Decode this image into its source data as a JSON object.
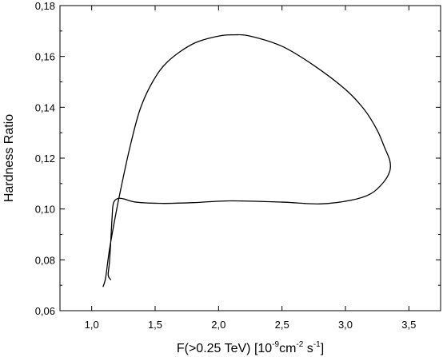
{
  "chart_data": {
    "type": "line",
    "title": "",
    "xlabel": {
      "prefix": "F(>0.25 TeV) [10",
      "exp1": "-9",
      "mid1": "cm",
      "exp2": "-2",
      "mid2": " s",
      "exp3": "-1",
      "suffix": "]"
    },
    "ylabel": "Hardness Ratio",
    "xlim": [
      0.75,
      3.75
    ],
    "ylim": [
      0.06,
      0.18
    ],
    "x_ticks": [
      "1,0",
      "1,5",
      "2,0",
      "2,5",
      "3,0",
      "3,5"
    ],
    "x_tick_values": [
      1.0,
      1.5,
      2.0,
      2.5,
      3.0,
      3.5
    ],
    "y_ticks": [
      "0,06",
      "0,08",
      "0,10",
      "0,12",
      "0,14",
      "0,16",
      "0,18"
    ],
    "y_tick_values": [
      0.06,
      0.08,
      0.1,
      0.12,
      0.14,
      0.16,
      0.18
    ],
    "grid": false,
    "series": [
      {
        "points": [
          [
            1.09,
            0.0695
          ],
          [
            1.11,
            0.073
          ],
          [
            1.14,
            0.084
          ],
          [
            1.19,
            0.098
          ],
          [
            1.23,
            0.108
          ],
          [
            1.3,
            0.124
          ],
          [
            1.38,
            0.139
          ],
          [
            1.48,
            0.15
          ],
          [
            1.6,
            0.158
          ],
          [
            1.8,
            0.165
          ],
          [
            2.0,
            0.168
          ],
          [
            2.12,
            0.1685
          ],
          [
            2.25,
            0.168
          ],
          [
            2.5,
            0.164
          ],
          [
            2.75,
            0.1565
          ],
          [
            3.0,
            0.147
          ],
          [
            3.15,
            0.139
          ],
          [
            3.25,
            0.131
          ],
          [
            3.31,
            0.124
          ],
          [
            3.35,
            0.119
          ],
          [
            3.35,
            0.115
          ],
          [
            3.3,
            0.1105
          ],
          [
            3.2,
            0.106
          ],
          [
            3.05,
            0.1035
          ],
          [
            2.8,
            0.102
          ],
          [
            2.5,
            0.1027
          ],
          [
            2.1,
            0.1032
          ],
          [
            1.8,
            0.1025
          ],
          [
            1.55,
            0.1022
          ],
          [
            1.35,
            0.1027
          ],
          [
            1.25,
            0.104
          ],
          [
            1.2,
            0.104
          ],
          [
            1.17,
            0.102
          ],
          [
            1.16,
            0.096
          ],
          [
            1.15,
            0.087
          ],
          [
            1.14,
            0.079
          ],
          [
            1.13,
            0.074
          ],
          [
            1.15,
            0.0722
          ]
        ]
      }
    ]
  }
}
